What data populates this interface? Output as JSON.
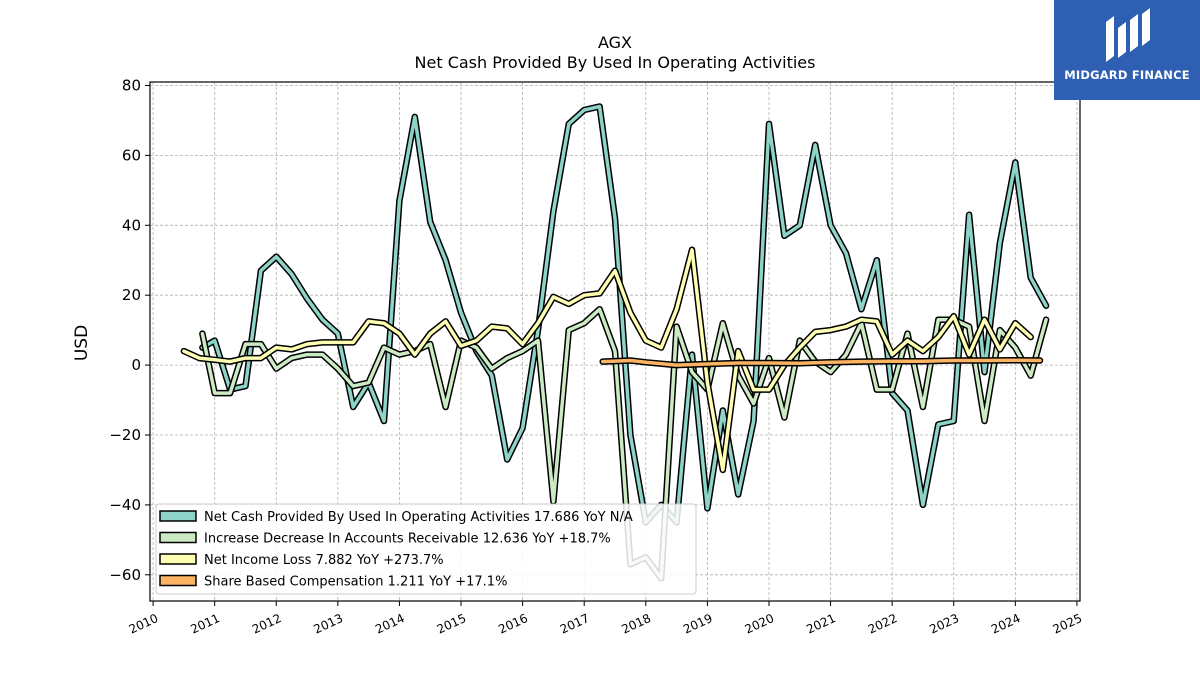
{
  "chart_data": {
    "type": "line",
    "title": "AGX",
    "subtitle": "Net Cash Provided By Used In Operating Activities",
    "xlabel": "",
    "ylabel": "USD",
    "xlim": [
      2009.95,
      2025.05
    ],
    "ylim": [
      -67.5,
      81
    ],
    "x_ticks": [
      "2010",
      "2011",
      "2012",
      "2013",
      "2014",
      "2015",
      "2016",
      "2017",
      "2018",
      "2019",
      "2020",
      "2021",
      "2022",
      "2023",
      "2024",
      "2025"
    ],
    "y_ticks": [
      80,
      60,
      40,
      20,
      0,
      -20,
      -40,
      -60
    ],
    "y_tick_labels": [
      "80",
      "60",
      "40",
      "20",
      "0",
      "−20",
      "−40",
      "−60"
    ],
    "grid": true,
    "legend_position": "bottom-left",
    "series": [
      {
        "name": "Net Cash Provided By Used In Operating Activities",
        "legend": "Net Cash Provided By Used In Operating Activities  17.686 YoY N/A",
        "color": "#8dd3c7",
        "points": [
          [
            2010.8,
            5
          ],
          [
            2011.0,
            7
          ],
          [
            2011.25,
            -7
          ],
          [
            2011.5,
            -6
          ],
          [
            2011.75,
            27
          ],
          [
            2012.0,
            31
          ],
          [
            2012.25,
            26
          ],
          [
            2012.5,
            19
          ],
          [
            2012.75,
            13
          ],
          [
            2013.0,
            9
          ],
          [
            2013.25,
            -12
          ],
          [
            2013.5,
            -5
          ],
          [
            2013.75,
            -16
          ],
          [
            2014.0,
            47
          ],
          [
            2014.25,
            71
          ],
          [
            2014.5,
            41
          ],
          [
            2014.75,
            30
          ],
          [
            2015.0,
            15
          ],
          [
            2015.25,
            4
          ],
          [
            2015.5,
            -3
          ],
          [
            2015.75,
            -27
          ],
          [
            2016.0,
            -18
          ],
          [
            2016.25,
            10
          ],
          [
            2016.5,
            44
          ],
          [
            2016.75,
            69
          ],
          [
            2017.0,
            73
          ],
          [
            2017.25,
            74
          ],
          [
            2017.5,
            42
          ],
          [
            2017.75,
            -20
          ],
          [
            2018.0,
            -45
          ],
          [
            2018.25,
            -40
          ],
          [
            2018.5,
            -45
          ],
          [
            2018.75,
            3
          ],
          [
            2019.0,
            -41
          ],
          [
            2019.25,
            -13
          ],
          [
            2019.5,
            -37
          ],
          [
            2019.75,
            -16
          ],
          [
            2020.0,
            69
          ],
          [
            2020.25,
            37
          ],
          [
            2020.5,
            40
          ],
          [
            2020.75,
            63
          ],
          [
            2021.0,
            40
          ],
          [
            2021.25,
            32
          ],
          [
            2021.5,
            16
          ],
          [
            2021.75,
            30
          ],
          [
            2022.0,
            -8
          ],
          [
            2022.25,
            -13
          ],
          [
            2022.5,
            -40
          ],
          [
            2022.75,
            -17
          ],
          [
            2023.0,
            -16
          ],
          [
            2023.25,
            43
          ],
          [
            2023.5,
            -2
          ],
          [
            2023.75,
            35
          ],
          [
            2024.0,
            58
          ],
          [
            2024.25,
            25
          ],
          [
            2024.5,
            17
          ]
        ]
      },
      {
        "name": "Increase Decrease In Accounts Receivable",
        "legend": "Increase Decrease In Accounts Receivable  12.636 YoY +18.7%",
        "color": "#ccebc5",
        "points": [
          [
            2010.8,
            9
          ],
          [
            2011.0,
            -8
          ],
          [
            2011.25,
            -8
          ],
          [
            2011.5,
            6
          ],
          [
            2011.75,
            6
          ],
          [
            2012.0,
            -1
          ],
          [
            2012.25,
            2
          ],
          [
            2012.5,
            3
          ],
          [
            2012.75,
            3
          ],
          [
            2013.0,
            -1
          ],
          [
            2013.25,
            -6
          ],
          [
            2013.5,
            -5
          ],
          [
            2013.75,
            5
          ],
          [
            2014.0,
            3
          ],
          [
            2014.25,
            4
          ],
          [
            2014.5,
            6
          ],
          [
            2014.75,
            -12
          ],
          [
            2015.0,
            7
          ],
          [
            2015.25,
            5
          ],
          [
            2015.5,
            -1
          ],
          [
            2015.75,
            2
          ],
          [
            2016.0,
            4
          ],
          [
            2016.25,
            7
          ],
          [
            2016.5,
            -39
          ],
          [
            2016.75,
            10
          ],
          [
            2017.0,
            12
          ],
          [
            2017.25,
            16
          ],
          [
            2017.5,
            4
          ],
          [
            2017.75,
            -57
          ],
          [
            2018.0,
            -55
          ],
          [
            2018.25,
            -61
          ],
          [
            2018.5,
            11
          ],
          [
            2018.75,
            -2
          ],
          [
            2019.0,
            -7
          ],
          [
            2019.25,
            12
          ],
          [
            2019.5,
            -3
          ],
          [
            2019.75,
            -11
          ],
          [
            2020.0,
            2
          ],
          [
            2020.25,
            -15
          ],
          [
            2020.5,
            7
          ],
          [
            2020.75,
            1
          ],
          [
            2021.0,
            -2
          ],
          [
            2021.25,
            3
          ],
          [
            2021.5,
            12
          ],
          [
            2021.75,
            -7
          ],
          [
            2022.0,
            -7
          ],
          [
            2022.25,
            9
          ],
          [
            2022.5,
            -12
          ],
          [
            2022.75,
            13
          ],
          [
            2023.0,
            13
          ],
          [
            2023.25,
            11
          ],
          [
            2023.5,
            -16
          ],
          [
            2023.75,
            10
          ],
          [
            2024.0,
            5
          ],
          [
            2024.25,
            -3
          ],
          [
            2024.5,
            13
          ]
        ]
      },
      {
        "name": "Net Income Loss",
        "legend": "Net Income Loss  7.882 YoY +273.7%",
        "color": "#ffffb3",
        "points": [
          [
            2010.5,
            4
          ],
          [
            2010.75,
            2
          ],
          [
            2011.0,
            1.5
          ],
          [
            2011.25,
            1
          ],
          [
            2011.5,
            2
          ],
          [
            2011.75,
            2
          ],
          [
            2012.0,
            5
          ],
          [
            2012.25,
            4.5
          ],
          [
            2012.5,
            6
          ],
          [
            2012.75,
            6.5
          ],
          [
            2013.0,
            6.5
          ],
          [
            2013.25,
            6.5
          ],
          [
            2013.5,
            12.5
          ],
          [
            2013.75,
            12
          ],
          [
            2014.0,
            9
          ],
          [
            2014.25,
            3
          ],
          [
            2014.5,
            9
          ],
          [
            2014.75,
            12.5
          ],
          [
            2015.0,
            5.5
          ],
          [
            2015.25,
            7
          ],
          [
            2015.5,
            11
          ],
          [
            2015.75,
            10.5
          ],
          [
            2016.0,
            6
          ],
          [
            2016.25,
            12
          ],
          [
            2016.5,
            19.5
          ],
          [
            2016.75,
            17.5
          ],
          [
            2017.0,
            20
          ],
          [
            2017.25,
            20.5
          ],
          [
            2017.5,
            27
          ],
          [
            2017.75,
            15
          ],
          [
            2018.0,
            7
          ],
          [
            2018.25,
            5
          ],
          [
            2018.5,
            16
          ],
          [
            2018.75,
            33
          ],
          [
            2019.0,
            -5
          ],
          [
            2019.25,
            -30
          ],
          [
            2019.5,
            4
          ],
          [
            2019.75,
            -7
          ],
          [
            2020.0,
            -7
          ],
          [
            2020.25,
            0
          ],
          [
            2020.5,
            5
          ],
          [
            2020.75,
            9.5
          ],
          [
            2021.0,
            10
          ],
          [
            2021.25,
            11
          ],
          [
            2021.5,
            13
          ],
          [
            2021.75,
            12.5
          ],
          [
            2022.0,
            3
          ],
          [
            2022.25,
            7
          ],
          [
            2022.5,
            4
          ],
          [
            2022.75,
            8
          ],
          [
            2023.0,
            14
          ],
          [
            2023.25,
            3
          ],
          [
            2023.5,
            13
          ],
          [
            2023.75,
            4.5
          ],
          [
            2024.0,
            12
          ],
          [
            2024.25,
            8
          ]
        ]
      },
      {
        "name": "Share Based Compensation",
        "legend": "Share Based Compensation  1.211 YoY +17.1%",
        "color": "#fdb462",
        "points": [
          [
            2017.3,
            1
          ],
          [
            2017.75,
            1.3
          ],
          [
            2018.0,
            0.8
          ],
          [
            2018.5,
            0
          ],
          [
            2019.0,
            0.3
          ],
          [
            2019.5,
            0.6
          ],
          [
            2020.0,
            0.6
          ],
          [
            2020.5,
            0.5
          ],
          [
            2021.0,
            0.8
          ],
          [
            2021.5,
            1
          ],
          [
            2022.0,
            1.1
          ],
          [
            2022.5,
            1.1
          ],
          [
            2023.0,
            1.3
          ],
          [
            2023.5,
            1.3
          ],
          [
            2024.0,
            1.4
          ],
          [
            2024.4,
            1.3
          ]
        ]
      }
    ]
  },
  "logo": {
    "text": "MIDGARD FINANCE",
    "icon": "midgard-finance-logo-icon",
    "color": "#2f5fb3"
  }
}
